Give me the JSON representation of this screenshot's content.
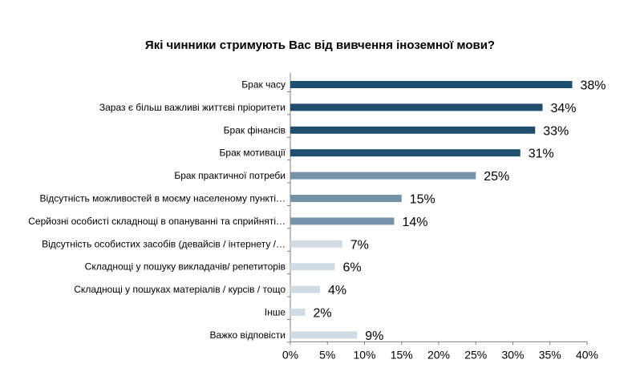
{
  "chart_data": {
    "type": "bar",
    "orientation": "horizontal",
    "title": "Які чинники стримують Вас від вивчення іноземної мови?",
    "categories": [
      "Брак часу",
      "Зараз є більш важливі життєві пріоритети",
      "Брак фінансів",
      "Брак мотивації",
      "Брак практичної потреби",
      "Відсутність можливостей в моєму населеному пункті…",
      "Серйозні особисті складнощі в опануванні та сприйняті…",
      "Відсутність особистих засобів (девайсів / інтернету /…",
      "Складнощі у пошуку викладачів/ репетиторів",
      "Складнощі у пошуках матеріалів / курсів / тощо",
      "Інше",
      "Важко відповісти"
    ],
    "values": [
      38,
      34,
      33,
      31,
      25,
      15,
      14,
      7,
      6,
      4,
      2,
      9
    ],
    "value_labels": [
      "38%",
      "34%",
      "33%",
      "31%",
      "25%",
      "15%",
      "14%",
      "7%",
      "6%",
      "4%",
      "2%",
      "9%"
    ],
    "colors": [
      "#1f4e6e",
      "#1f4e6e",
      "#1f4e6e",
      "#1f4e6e",
      "#7592a8",
      "#7592a8",
      "#7592a8",
      "#d0dbe4",
      "#d0dbe4",
      "#d0dbe4",
      "#d0dbe4",
      "#d0dbe4"
    ],
    "xlim": [
      0,
      40
    ],
    "x_ticks": [
      "0%",
      "5%",
      "10%",
      "15%",
      "20%",
      "25%",
      "30%",
      "35%",
      "40%"
    ],
    "grid": false,
    "legend": "none"
  }
}
